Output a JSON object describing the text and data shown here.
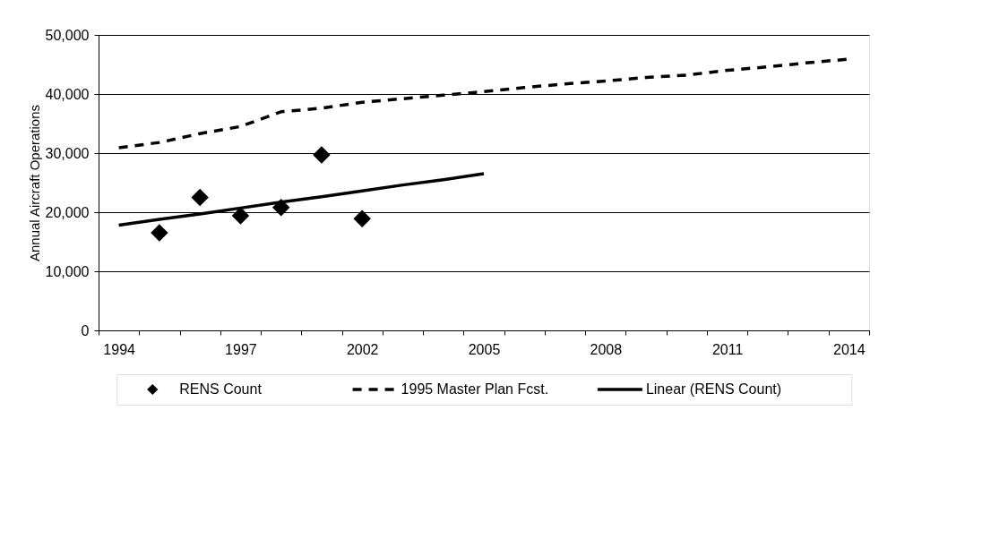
{
  "chart_data": {
    "type": "line",
    "ylabel": "Annual Aircraft Operations",
    "categories": [
      "1994",
      null,
      null,
      "1997",
      null,
      null,
      "2002",
      null,
      null,
      "2005",
      null,
      null,
      "2008",
      null,
      null,
      "2011",
      null,
      null,
      "2014"
    ],
    "series": [
      {
        "name": "RENS Count",
        "type": "scatter",
        "marker": "diamond",
        "color": "#000000",
        "values": [
          null,
          16500,
          22500,
          19400,
          20800,
          29700,
          18900,
          null,
          null,
          null,
          null,
          null,
          null,
          null,
          null,
          null,
          null,
          null,
          null
        ]
      },
      {
        "name": "1995 Master Plan Fcst.",
        "line_style": "dashed",
        "color": "#000000",
        "values": [
          30900,
          31800,
          33300,
          34500,
          37000,
          37600,
          38600,
          39200,
          39800,
          40400,
          41100,
          41700,
          42200,
          42800,
          43200,
          44000,
          44600,
          45300,
          45900
        ]
      },
      {
        "name": "Linear (RENS Count)",
        "line_style": "solid",
        "color": "#000000",
        "values": [
          17800,
          18800,
          19700,
          20700,
          21700,
          22600,
          23600,
          24600,
          25500,
          26500,
          null,
          null,
          null,
          null,
          null,
          null,
          null,
          null,
          null
        ]
      }
    ],
    "ylim": [
      0,
      50000
    ],
    "yticks": [
      0,
      {
        "value": 10000,
        "label": "10,000"
      },
      {
        "value": 20000,
        "label": "20,000"
      },
      {
        "value": 30000,
        "label": "30,000"
      },
      {
        "value": 40000,
        "label": "40,000"
      },
      {
        "value": 50000,
        "label": "50,000"
      }
    ],
    "grid": "y",
    "legend": "bottom"
  }
}
